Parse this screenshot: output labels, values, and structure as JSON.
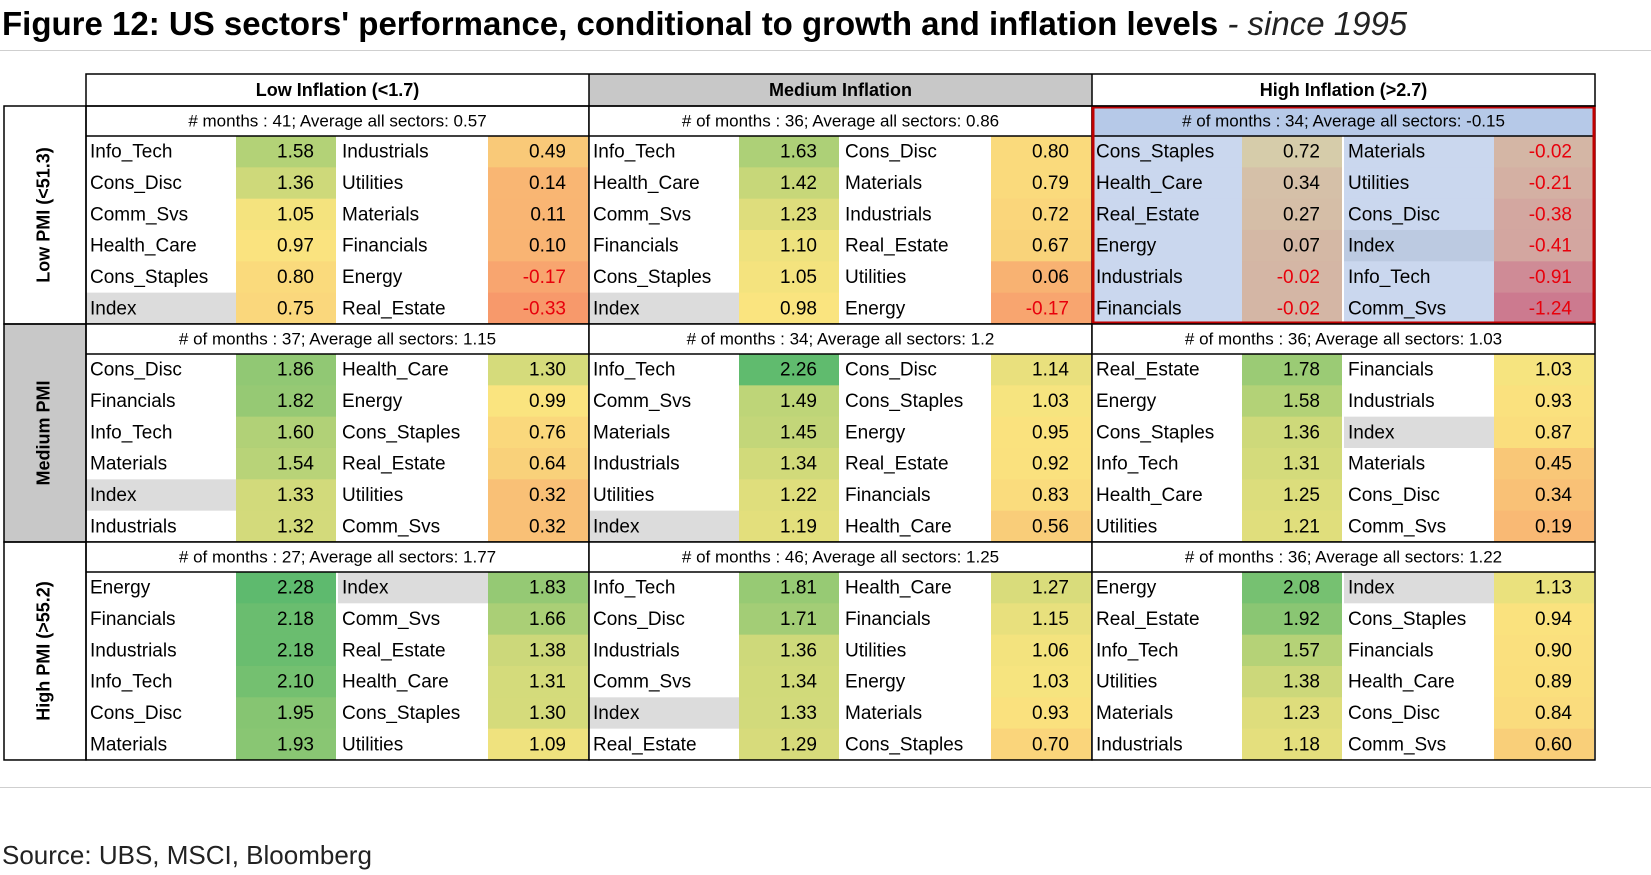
{
  "figure": {
    "title_main": "Figure 12: US sectors' performance, conditional to growth and inflation levels",
    "title_sep": " - ",
    "title_sub": "since 1995",
    "source": "Source: UBS, MSCI, Bloomberg"
  },
  "chart_data": {
    "type": "table",
    "columns": [
      "Low Inflation (<1.7)",
      "Medium Inflation",
      "High Inflation (>2.7)"
    ],
    "rows": [
      "Low PMI (<51.3)",
      "Medium PMI",
      "High PMI (>55.2)"
    ],
    "blocks": [
      [
        {
          "meta": "# months : 41;   Average all sectors: 0.57",
          "left": [
            [
              "Info_Tech",
              "1.58"
            ],
            [
              "Cons_Disc",
              "1.36"
            ],
            [
              "Comm_Svs",
              "1.05"
            ],
            [
              "Health_Care",
              "0.97"
            ],
            [
              "Cons_Staples",
              "0.80"
            ],
            [
              "Index",
              "0.75"
            ]
          ],
          "right": [
            [
              "Industrials",
              "0.49"
            ],
            [
              "Utilities",
              "0.14"
            ],
            [
              "Materials",
              "0.11"
            ],
            [
              "Financials",
              "0.10"
            ],
            [
              "Energy",
              "-0.17"
            ],
            [
              "Real_Estate",
              "-0.33"
            ]
          ]
        },
        {
          "meta": "# of months : 36;   Average all sectors: 0.86",
          "left": [
            [
              "Info_Tech",
              "1.63"
            ],
            [
              "Health_Care",
              "1.42"
            ],
            [
              "Comm_Svs",
              "1.23"
            ],
            [
              "Financials",
              "1.10"
            ],
            [
              "Cons_Staples",
              "1.05"
            ],
            [
              "Index",
              "0.98"
            ]
          ],
          "right": [
            [
              "Cons_Disc",
              "0.80"
            ],
            [
              "Materials",
              "0.79"
            ],
            [
              "Industrials",
              "0.72"
            ],
            [
              "Real_Estate",
              "0.67"
            ],
            [
              "Utilities",
              "0.06"
            ],
            [
              "Energy",
              "-0.17"
            ]
          ]
        },
        {
          "meta": "# of months : 34;   Average all sectors: -0.15",
          "left": [
            [
              "Cons_Staples",
              "0.72"
            ],
            [
              "Health_Care",
              "0.34"
            ],
            [
              "Real_Estate",
              "0.27"
            ],
            [
              "Energy",
              "0.07"
            ],
            [
              "Industrials",
              "-0.02"
            ],
            [
              "Financials",
              "-0.02"
            ]
          ],
          "right": [
            [
              "Materials",
              "-0.02"
            ],
            [
              "Utilities",
              "-0.21"
            ],
            [
              "Cons_Disc",
              "-0.38"
            ],
            [
              "Index",
              "-0.41"
            ],
            [
              "Info_Tech",
              "-0.91"
            ],
            [
              "Comm_Svs",
              "-1.24"
            ]
          ]
        }
      ],
      [
        {
          "meta": "# of months : 37;   Average all sectors: 1.15",
          "left": [
            [
              "Cons_Disc",
              "1.86"
            ],
            [
              "Financials",
              "1.82"
            ],
            [
              "Info_Tech",
              "1.60"
            ],
            [
              "Materials",
              "1.54"
            ],
            [
              "Index",
              "1.33"
            ],
            [
              "Industrials",
              "1.32"
            ]
          ],
          "right": [
            [
              "Health_Care",
              "1.30"
            ],
            [
              "Energy",
              "0.99"
            ],
            [
              "Cons_Staples",
              "0.76"
            ],
            [
              "Real_Estate",
              "0.64"
            ],
            [
              "Utilities",
              "0.32"
            ],
            [
              "Comm_Svs",
              "0.32"
            ]
          ]
        },
        {
          "meta": "# of months : 34;   Average all sectors: 1.2",
          "left": [
            [
              "Info_Tech",
              "2.26"
            ],
            [
              "Comm_Svs",
              "1.49"
            ],
            [
              "Materials",
              "1.45"
            ],
            [
              "Industrials",
              "1.34"
            ],
            [
              "Utilities",
              "1.22"
            ],
            [
              "Index",
              "1.19"
            ]
          ],
          "right": [
            [
              "Cons_Disc",
              "1.14"
            ],
            [
              "Cons_Staples",
              "1.03"
            ],
            [
              "Energy",
              "0.95"
            ],
            [
              "Real_Estate",
              "0.92"
            ],
            [
              "Financials",
              "0.83"
            ],
            [
              "Health_Care",
              "0.56"
            ]
          ]
        },
        {
          "meta": "# of months : 36;   Average all sectors: 1.03",
          "left": [
            [
              "Real_Estate",
              "1.78"
            ],
            [
              "Energy",
              "1.58"
            ],
            [
              "Cons_Staples",
              "1.36"
            ],
            [
              "Info_Tech",
              "1.31"
            ],
            [
              "Health_Care",
              "1.25"
            ],
            [
              "Utilities",
              "1.21"
            ]
          ],
          "right": [
            [
              "Financials",
              "1.03"
            ],
            [
              "Industrials",
              "0.93"
            ],
            [
              "Index",
              "0.87"
            ],
            [
              "Materials",
              "0.45"
            ],
            [
              "Cons_Disc",
              "0.34"
            ],
            [
              "Comm_Svs",
              "0.19"
            ]
          ]
        }
      ],
      [
        {
          "meta": "# of months : 27;   Average all sectors: 1.77",
          "left": [
            [
              "Energy",
              "2.28"
            ],
            [
              "Financials",
              "2.18"
            ],
            [
              "Industrials",
              "2.18"
            ],
            [
              "Info_Tech",
              "2.10"
            ],
            [
              "Cons_Disc",
              "1.95"
            ],
            [
              "Materials",
              "1.93"
            ]
          ],
          "right": [
            [
              "Index",
              "1.83"
            ],
            [
              "Comm_Svs",
              "1.66"
            ],
            [
              "Real_Estate",
              "1.38"
            ],
            [
              "Health_Care",
              "1.31"
            ],
            [
              "Cons_Staples",
              "1.30"
            ],
            [
              "Utilities",
              "1.09"
            ]
          ]
        },
        {
          "meta": "# of months : 46;   Average all sectors: 1.25",
          "left": [
            [
              "Info_Tech",
              "1.81"
            ],
            [
              "Cons_Disc",
              "1.71"
            ],
            [
              "Industrials",
              "1.36"
            ],
            [
              "Comm_Svs",
              "1.34"
            ],
            [
              "Index",
              "1.33"
            ],
            [
              "Real_Estate",
              "1.29"
            ]
          ],
          "right": [
            [
              "Health_Care",
              "1.27"
            ],
            [
              "Financials",
              "1.15"
            ],
            [
              "Utilities",
              "1.06"
            ],
            [
              "Energy",
              "1.03"
            ],
            [
              "Materials",
              "0.93"
            ],
            [
              "Cons_Staples",
              "0.70"
            ]
          ]
        },
        {
          "meta": "# of months : 36;   Average all sectors: 1.22",
          "left": [
            [
              "Energy",
              "2.08"
            ],
            [
              "Real_Estate",
              "1.92"
            ],
            [
              "Info_Tech",
              "1.57"
            ],
            [
              "Utilities",
              "1.38"
            ],
            [
              "Materials",
              "1.23"
            ],
            [
              "Industrials",
              "1.18"
            ]
          ],
          "right": [
            [
              "Index",
              "1.13"
            ],
            [
              "Cons_Staples",
              "0.94"
            ],
            [
              "Financials",
              "0.90"
            ],
            [
              "Health_Care",
              "0.89"
            ],
            [
              "Cons_Disc",
              "0.84"
            ],
            [
              "Comm_Svs",
              "0.60"
            ]
          ]
        }
      ]
    ],
    "highlight_block": [
      0,
      2
    ],
    "colors": {
      "scale_low": "#e9414a",
      "scale_mid": "#fae57f",
      "scale_high": "#5eba6e",
      "index_bg": "#dcdcdc",
      "highlight_overlay": "#a9bfe4",
      "highlight_border": "#c00000",
      "medium_header_bg": "#c8c8c8"
    }
  }
}
